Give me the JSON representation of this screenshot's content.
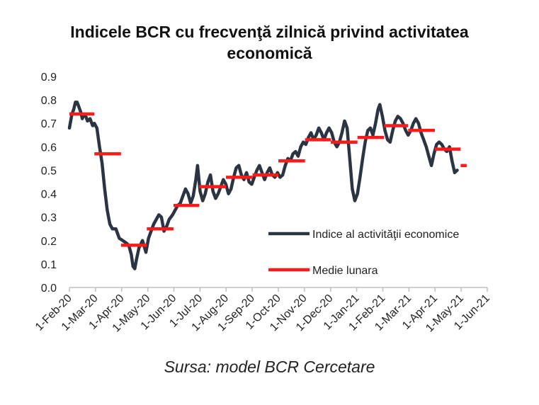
{
  "chart_data": {
    "type": "line",
    "title_lines": [
      "Indicele BCR cu frecvenţă zilnică privind activitatea",
      "economică"
    ],
    "source": "Sursa: model BCR Cercetare",
    "ylim": [
      0,
      0.9
    ],
    "yticks": [
      "0.0",
      "0.1",
      "0.2",
      "0.3",
      "0.4",
      "0.5",
      "0.6",
      "0.7",
      "0.8",
      "0.9"
    ],
    "xticks": [
      "1-Feb-20",
      "1-Mar-20",
      "1-Apr-20",
      "1-May-20",
      "1-Jun-20",
      "1-Jul-20",
      "1-Aug-20",
      "1-Sep-20",
      "1-Oct-20",
      "1-Nov-20",
      "1-Dec-20",
      "1-Jan-21",
      "1-Feb-21",
      "1-Mar-21",
      "1-Apr-21",
      "1-May-21",
      "1-Jun-21"
    ],
    "legend_position": "right",
    "series": [
      {
        "name": "Indice al activităţii economice",
        "color": "#2b3442",
        "style": "line",
        "points": [
          [
            "2020-02-01",
            0.68
          ],
          [
            "2020-02-02",
            0.7
          ],
          [
            "2020-02-04",
            0.74
          ],
          [
            "2020-02-06",
            0.76
          ],
          [
            "2020-02-08",
            0.79
          ],
          [
            "2020-02-10",
            0.79
          ],
          [
            "2020-02-12",
            0.77
          ],
          [
            "2020-02-14",
            0.75
          ],
          [
            "2020-02-16",
            0.72
          ],
          [
            "2020-02-18",
            0.74
          ],
          [
            "2020-02-20",
            0.73
          ],
          [
            "2020-02-22",
            0.71
          ],
          [
            "2020-02-25",
            0.72
          ],
          [
            "2020-02-28",
            0.69
          ],
          [
            "2020-03-01",
            0.7
          ],
          [
            "2020-03-04",
            0.68
          ],
          [
            "2020-03-07",
            0.6
          ],
          [
            "2020-03-10",
            0.53
          ],
          [
            "2020-03-13",
            0.42
          ],
          [
            "2020-03-16",
            0.33
          ],
          [
            "2020-03-19",
            0.27
          ],
          [
            "2020-03-22",
            0.25
          ],
          [
            "2020-03-26",
            0.25
          ],
          [
            "2020-03-30",
            0.21
          ],
          [
            "2020-04-03",
            0.2
          ],
          [
            "2020-04-07",
            0.19
          ],
          [
            "2020-04-10",
            0.18
          ],
          [
            "2020-04-13",
            0.14
          ],
          [
            "2020-04-15",
            0.09
          ],
          [
            "2020-04-17",
            0.08
          ],
          [
            "2020-04-19",
            0.12
          ],
          [
            "2020-04-22",
            0.17
          ],
          [
            "2020-04-26",
            0.2
          ],
          [
            "2020-04-30",
            0.15
          ],
          [
            "2020-05-03",
            0.21
          ],
          [
            "2020-05-06",
            0.24
          ],
          [
            "2020-05-09",
            0.27
          ],
          [
            "2020-05-12",
            0.29
          ],
          [
            "2020-05-15",
            0.31
          ],
          [
            "2020-05-18",
            0.3
          ],
          [
            "2020-05-21",
            0.24
          ],
          [
            "2020-05-24",
            0.26
          ],
          [
            "2020-05-27",
            0.29
          ],
          [
            "2020-05-31",
            0.31
          ],
          [
            "2020-06-03",
            0.33
          ],
          [
            "2020-06-06",
            0.35
          ],
          [
            "2020-06-09",
            0.36
          ],
          [
            "2020-06-12",
            0.39
          ],
          [
            "2020-06-15",
            0.42
          ],
          [
            "2020-06-18",
            0.4
          ],
          [
            "2020-06-21",
            0.36
          ],
          [
            "2020-06-24",
            0.39
          ],
          [
            "2020-06-27",
            0.46
          ],
          [
            "2020-06-29",
            0.52
          ],
          [
            "2020-07-02",
            0.41
          ],
          [
            "2020-07-05",
            0.37
          ],
          [
            "2020-07-08",
            0.4
          ],
          [
            "2020-07-11",
            0.45
          ],
          [
            "2020-07-14",
            0.48
          ],
          [
            "2020-07-17",
            0.41
          ],
          [
            "2020-07-20",
            0.38
          ],
          [
            "2020-07-23",
            0.4
          ],
          [
            "2020-07-26",
            0.43
          ],
          [
            "2020-07-29",
            0.46
          ],
          [
            "2020-08-01",
            0.44
          ],
          [
            "2020-08-04",
            0.4
          ],
          [
            "2020-08-07",
            0.42
          ],
          [
            "2020-08-10",
            0.47
          ],
          [
            "2020-08-13",
            0.51
          ],
          [
            "2020-08-16",
            0.52
          ],
          [
            "2020-08-19",
            0.48
          ],
          [
            "2020-08-22",
            0.46
          ],
          [
            "2020-08-25",
            0.49
          ],
          [
            "2020-08-28",
            0.45
          ],
          [
            "2020-08-31",
            0.44
          ],
          [
            "2020-09-03",
            0.47
          ],
          [
            "2020-09-06",
            0.5
          ],
          [
            "2020-09-09",
            0.52
          ],
          [
            "2020-09-12",
            0.49
          ],
          [
            "2020-09-15",
            0.46
          ],
          [
            "2020-09-18",
            0.49
          ],
          [
            "2020-09-21",
            0.51
          ],
          [
            "2020-09-24",
            0.48
          ],
          [
            "2020-09-27",
            0.47
          ],
          [
            "2020-09-30",
            0.49
          ],
          [
            "2020-10-03",
            0.47
          ],
          [
            "2020-10-06",
            0.48
          ],
          [
            "2020-10-09",
            0.52
          ],
          [
            "2020-10-12",
            0.55
          ],
          [
            "2020-10-15",
            0.54
          ],
          [
            "2020-10-18",
            0.57
          ],
          [
            "2020-10-21",
            0.58
          ],
          [
            "2020-10-24",
            0.56
          ],
          [
            "2020-10-27",
            0.6
          ],
          [
            "2020-10-30",
            0.62
          ],
          [
            "2020-11-02",
            0.61
          ],
          [
            "2020-11-05",
            0.64
          ],
          [
            "2020-11-08",
            0.66
          ],
          [
            "2020-11-11",
            0.63
          ],
          [
            "2020-11-14",
            0.65
          ],
          [
            "2020-11-17",
            0.68
          ],
          [
            "2020-11-20",
            0.66
          ],
          [
            "2020-11-23",
            0.63
          ],
          [
            "2020-11-26",
            0.66
          ],
          [
            "2020-11-29",
            0.68
          ],
          [
            "2020-12-02",
            0.66
          ],
          [
            "2020-12-05",
            0.62
          ],
          [
            "2020-12-08",
            0.6
          ],
          [
            "2020-12-11",
            0.62
          ],
          [
            "2020-12-14",
            0.66
          ],
          [
            "2020-12-17",
            0.71
          ],
          [
            "2020-12-20",
            0.68
          ],
          [
            "2020-12-23",
            0.55
          ],
          [
            "2020-12-26",
            0.42
          ],
          [
            "2020-12-29",
            0.37
          ],
          [
            "2021-01-01",
            0.4
          ],
          [
            "2021-01-04",
            0.47
          ],
          [
            "2021-01-07",
            0.55
          ],
          [
            "2021-01-10",
            0.62
          ],
          [
            "2021-01-13",
            0.67
          ],
          [
            "2021-01-16",
            0.68
          ],
          [
            "2021-01-19",
            0.65
          ],
          [
            "2021-01-22",
            0.7
          ],
          [
            "2021-01-25",
            0.76
          ],
          [
            "2021-01-27",
            0.78
          ],
          [
            "2021-01-30",
            0.73
          ],
          [
            "2021-02-02",
            0.67
          ],
          [
            "2021-02-05",
            0.63
          ],
          [
            "2021-02-08",
            0.62
          ],
          [
            "2021-02-11",
            0.67
          ],
          [
            "2021-02-14",
            0.71
          ],
          [
            "2021-02-17",
            0.73
          ],
          [
            "2021-02-20",
            0.72
          ],
          [
            "2021-02-23",
            0.7
          ],
          [
            "2021-02-26",
            0.67
          ],
          [
            "2021-03-01",
            0.65
          ],
          [
            "2021-03-04",
            0.67
          ],
          [
            "2021-03-07",
            0.7
          ],
          [
            "2021-03-10",
            0.72
          ],
          [
            "2021-03-13",
            0.7
          ],
          [
            "2021-03-16",
            0.66
          ],
          [
            "2021-03-19",
            0.63
          ],
          [
            "2021-03-22",
            0.6
          ],
          [
            "2021-03-25",
            0.56
          ],
          [
            "2021-03-28",
            0.52
          ],
          [
            "2021-03-31",
            0.57
          ],
          [
            "2021-04-03",
            0.61
          ],
          [
            "2021-04-06",
            0.62
          ],
          [
            "2021-04-09",
            0.61
          ],
          [
            "2021-04-12",
            0.59
          ],
          [
            "2021-04-15",
            0.58
          ],
          [
            "2021-04-18",
            0.6
          ],
          [
            "2021-04-21",
            0.54
          ],
          [
            "2021-04-24",
            0.49
          ],
          [
            "2021-04-27",
            0.5
          ]
        ]
      },
      {
        "name": "Medie lunara",
        "color": "#ff1a1a",
        "style": "step",
        "segments": [
          {
            "start": "2020-02-01",
            "end": "2020-03-01",
            "value": 0.74
          },
          {
            "start": "2020-03-01",
            "end": "2020-04-01",
            "value": 0.57
          },
          {
            "start": "2020-04-01",
            "end": "2020-05-01",
            "value": 0.18
          },
          {
            "start": "2020-05-01",
            "end": "2020-06-01",
            "value": 0.25
          },
          {
            "start": "2020-06-01",
            "end": "2020-07-01",
            "value": 0.35
          },
          {
            "start": "2020-07-01",
            "end": "2020-08-01",
            "value": 0.43
          },
          {
            "start": "2020-08-01",
            "end": "2020-09-01",
            "value": 0.47
          },
          {
            "start": "2020-09-01",
            "end": "2020-10-01",
            "value": 0.48
          },
          {
            "start": "2020-10-01",
            "end": "2020-11-01",
            "value": 0.54
          },
          {
            "start": "2020-11-01",
            "end": "2020-12-01",
            "value": 0.63
          },
          {
            "start": "2020-12-01",
            "end": "2021-01-01",
            "value": 0.62
          },
          {
            "start": "2021-01-01",
            "end": "2021-02-01",
            "value": 0.64
          },
          {
            "start": "2021-02-01",
            "end": "2021-03-01",
            "value": 0.69
          },
          {
            "start": "2021-03-01",
            "end": "2021-04-01",
            "value": 0.67
          },
          {
            "start": "2021-04-01",
            "end": "2021-05-01",
            "value": 0.59
          },
          {
            "start": "2021-05-01",
            "end": "2021-05-08",
            "value": 0.52
          }
        ]
      }
    ]
  }
}
